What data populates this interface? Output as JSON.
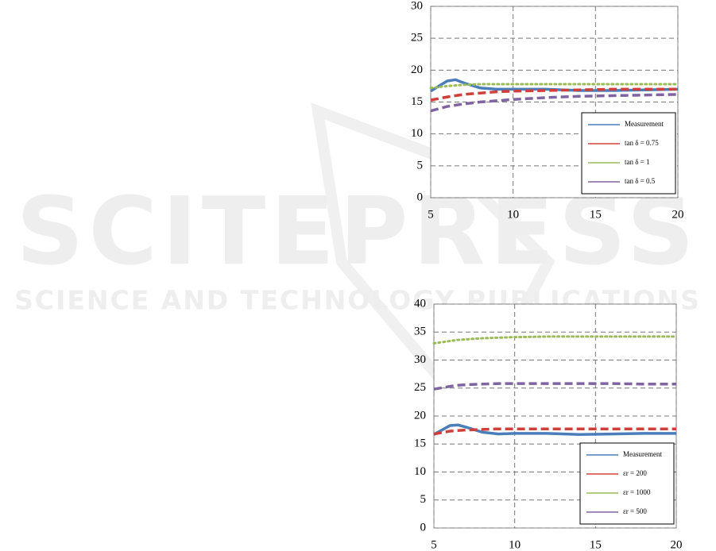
{
  "watermark": {
    "title": "SCITEPRESS",
    "subtitle": "SCIENCE AND TECHNOLOGY PUBLICATIONS"
  },
  "chart_data": [
    {
      "type": "line",
      "xlim": [
        5,
        20
      ],
      "xticks": [
        5,
        10,
        15,
        20
      ],
      "ylim": [
        0,
        30
      ],
      "yticks": [
        0,
        5,
        10,
        15,
        20,
        25,
        30
      ],
      "grid": true,
      "legend": "lower right",
      "x": [
        5,
        6,
        6.5,
        7,
        8,
        9,
        10,
        12,
        14,
        16,
        18,
        20
      ],
      "series": [
        {
          "name": "Measurement",
          "color": "#4a7ebb",
          "line_style": "solid",
          "values": [
            16.7,
            18.3,
            18.5,
            18.0,
            17.2,
            17.0,
            17.0,
            17.0,
            16.8,
            16.8,
            16.9,
            17.0
          ]
        },
        {
          "name": "tan δ = 0.75",
          "color": "#d0403a",
          "line_style": "dashed",
          "values": [
            15.3,
            15.8,
            16.0,
            16.2,
            16.4,
            16.6,
            16.7,
            16.8,
            16.9,
            17.0,
            17.0,
            17.0
          ]
        },
        {
          "name": "tan δ = 1",
          "color": "#9bbb59",
          "line_style": "dotted",
          "values": [
            17.2,
            17.5,
            17.6,
            17.7,
            17.8,
            17.8,
            17.8,
            17.8,
            17.8,
            17.8,
            17.8,
            17.8
          ]
        },
        {
          "name": "tan δ = 0.5",
          "color": "#8064a2",
          "line_style": "dashed",
          "values": [
            13.6,
            14.3,
            14.5,
            14.7,
            15.0,
            15.2,
            15.4,
            15.7,
            15.9,
            16.0,
            16.1,
            16.2
          ]
        }
      ]
    },
    {
      "type": "line",
      "xlim": [
        5,
        20
      ],
      "xticks": [
        5,
        10,
        15,
        20
      ],
      "ylim": [
        0,
        40
      ],
      "yticks": [
        0,
        5,
        10,
        15,
        20,
        25,
        30,
        35,
        40
      ],
      "grid": true,
      "legend": "lower right",
      "x": [
        5,
        6,
        6.5,
        7,
        8,
        9,
        10,
        12,
        14,
        16,
        18,
        20
      ],
      "series": [
        {
          "name": "Measurement",
          "color": "#4a7ebb",
          "line_style": "solid",
          "values": [
            16.7,
            18.3,
            18.4,
            18.0,
            17.1,
            16.8,
            16.9,
            16.9,
            16.7,
            16.8,
            16.9,
            16.9
          ]
        },
        {
          "name": "εr = 200",
          "color": "#d0403a",
          "line_style": "dashed",
          "values": [
            16.8,
            17.3,
            17.4,
            17.5,
            17.6,
            17.7,
            17.7,
            17.7,
            17.7,
            17.7,
            17.7,
            17.7
          ]
        },
        {
          "name": "εr = 1000",
          "color": "#9bbb59",
          "line_style": "dotted",
          "values": [
            33.0,
            33.4,
            33.6,
            33.7,
            33.9,
            34.0,
            34.1,
            34.2,
            34.2,
            34.2,
            34.2,
            34.2
          ]
        },
        {
          "name": "εr = 500",
          "color": "#8064a2",
          "line_style": "dashed",
          "values": [
            24.8,
            25.3,
            25.5,
            25.6,
            25.7,
            25.8,
            25.8,
            25.8,
            25.8,
            25.8,
            25.7,
            25.7
          ]
        }
      ]
    }
  ]
}
